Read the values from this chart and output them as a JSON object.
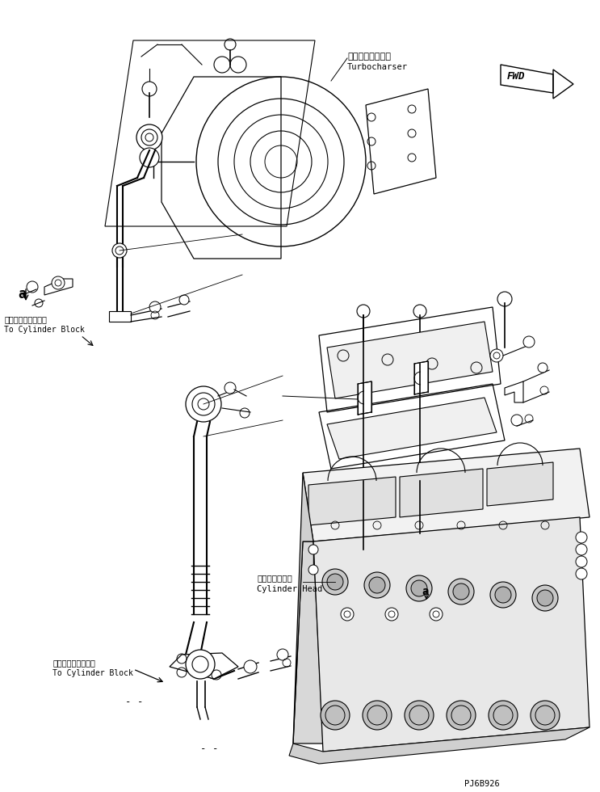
{
  "bg_color": "#ffffff",
  "line_color": "#000000",
  "fig_width": 7.43,
  "fig_height": 9.8,
  "dpi": 100,
  "labels": {
    "turbocharger_jp": "ターボチャージャ",
    "turbocharger_en": "Turbocharser",
    "cylinder_block_jp1": "シリンダブロックへ",
    "cylinder_block_en1": "To Cylinder Block",
    "cylinder_head_jp": "シリンダヘッド",
    "cylinder_head_en": "Cylinder Head",
    "cylinder_block_jp2": "シリンダブロックへ",
    "cylinder_block_en2": "To Cylinder Block",
    "part_code": "PJ6B926",
    "fwd_label": "FWD"
  }
}
